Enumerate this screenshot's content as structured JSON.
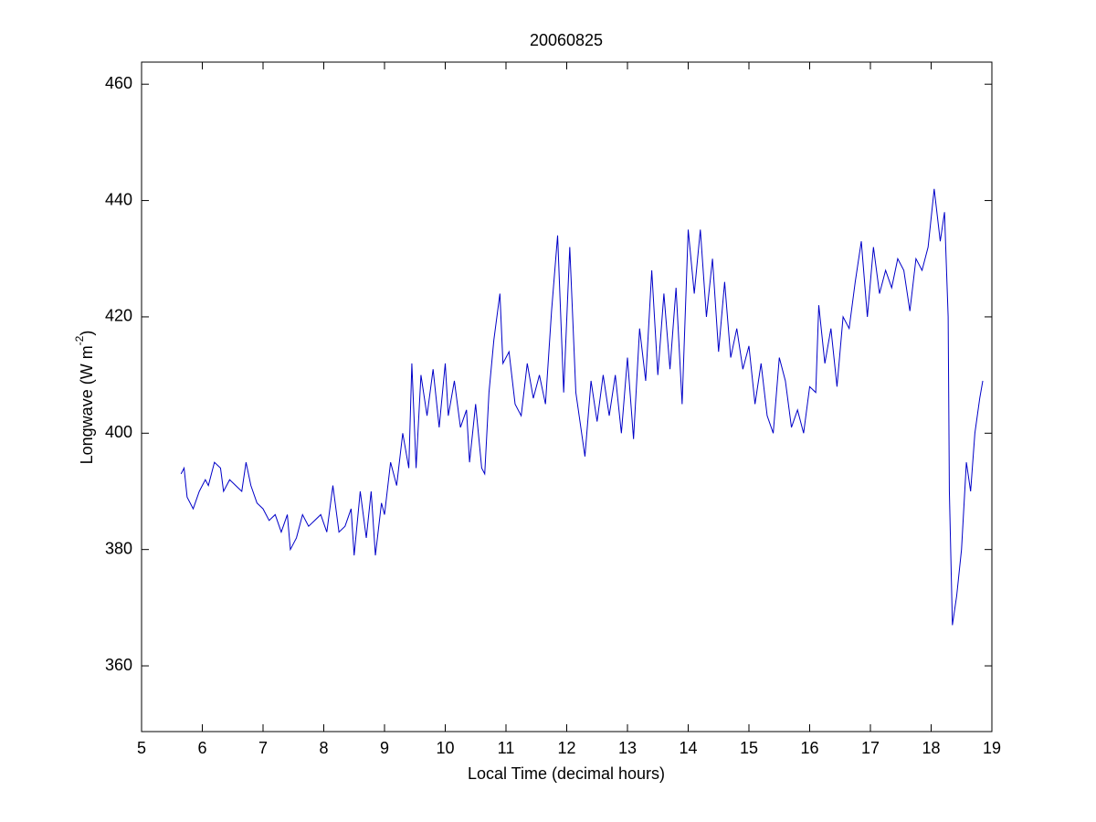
{
  "chart_data": {
    "type": "line",
    "title": "20060825",
    "xlabel": "Local Time (decimal hours)",
    "ylabel_parts": [
      "Longwave (W m",
      "-2",
      ")"
    ],
    "xlim": [
      5,
      19
    ],
    "xticks": [
      5,
      6,
      7,
      8,
      9,
      10,
      11,
      12,
      13,
      14,
      15,
      16,
      17,
      18,
      19
    ],
    "ylim": [
      348.7,
      463.8
    ],
    "yticks": [
      360,
      380,
      400,
      420,
      440,
      460
    ],
    "grid": false,
    "x": [
      5.65,
      5.7,
      5.75,
      5.85,
      5.95,
      6.05,
      6.1,
      6.2,
      6.3,
      6.35,
      6.45,
      6.55,
      6.65,
      6.72,
      6.8,
      6.9,
      7.0,
      7.1,
      7.2,
      7.3,
      7.4,
      7.45,
      7.55,
      7.65,
      7.75,
      7.85,
      7.95,
      8.05,
      8.15,
      8.25,
      8.35,
      8.45,
      8.5,
      8.6,
      8.7,
      8.78,
      8.85,
      8.95,
      9.0,
      9.1,
      9.2,
      9.3,
      9.4,
      9.45,
      9.52,
      9.6,
      9.7,
      9.8,
      9.9,
      10.0,
      10.05,
      10.15,
      10.25,
      10.35,
      10.4,
      10.5,
      10.6,
      10.65,
      10.72,
      10.8,
      10.9,
      10.95,
      11.05,
      11.15,
      11.25,
      11.35,
      11.45,
      11.55,
      11.65,
      11.75,
      11.85,
      11.95,
      12.05,
      12.15,
      12.3,
      12.4,
      12.5,
      12.6,
      12.7,
      12.8,
      12.9,
      13.0,
      13.1,
      13.2,
      13.3,
      13.4,
      13.5,
      13.6,
      13.7,
      13.8,
      13.9,
      14.0,
      14.1,
      14.2,
      14.3,
      14.4,
      14.5,
      14.6,
      14.7,
      14.8,
      14.9,
      15.0,
      15.1,
      15.2,
      15.3,
      15.4,
      15.5,
      15.6,
      15.7,
      15.8,
      15.9,
      16.0,
      16.1,
      16.15,
      16.25,
      16.35,
      16.45,
      16.55,
      16.65,
      16.75,
      16.85,
      16.95,
      17.05,
      17.15,
      17.25,
      17.35,
      17.45,
      17.55,
      17.65,
      17.75,
      17.85,
      17.95,
      18.05,
      18.15,
      18.22,
      18.28,
      18.3,
      18.35,
      18.42,
      18.5,
      18.58,
      18.65,
      18.72,
      18.8,
      18.85
    ],
    "series": [
      {
        "color": "#0000c8",
        "values": [
          393,
          394,
          389,
          387,
          390,
          392,
          391,
          395,
          394,
          390,
          392,
          391,
          390,
          395,
          391,
          388,
          387,
          385,
          386,
          383,
          386,
          380,
          382,
          386,
          384,
          385,
          386,
          383,
          391,
          383,
          384,
          387,
          379,
          390,
          382,
          390,
          379,
          388,
          386,
          395,
          391,
          400,
          394,
          412,
          394,
          410,
          403,
          411,
          401,
          412,
          403,
          409,
          401,
          404,
          395,
          405,
          394,
          393,
          407,
          416,
          424,
          412,
          414,
          405,
          403,
          412,
          406,
          410,
          405,
          421,
          434,
          407,
          432,
          407,
          396,
          409,
          402,
          410,
          403,
          410,
          400,
          413,
          399,
          418,
          409,
          428,
          410,
          424,
          411,
          425,
          405,
          435,
          424,
          435,
          420,
          430,
          414,
          426,
          413,
          418,
          411,
          415,
          405,
          412,
          403,
          400,
          413,
          409,
          401,
          404,
          400,
          408,
          407,
          422,
          412,
          418,
          408,
          420,
          418,
          426,
          433,
          420,
          432,
          424,
          428,
          425,
          430,
          428,
          421,
          430,
          428,
          432,
          442,
          433,
          438,
          420,
          390,
          367,
          372,
          380,
          395,
          390,
          400,
          406,
          409
        ]
      }
    ]
  }
}
